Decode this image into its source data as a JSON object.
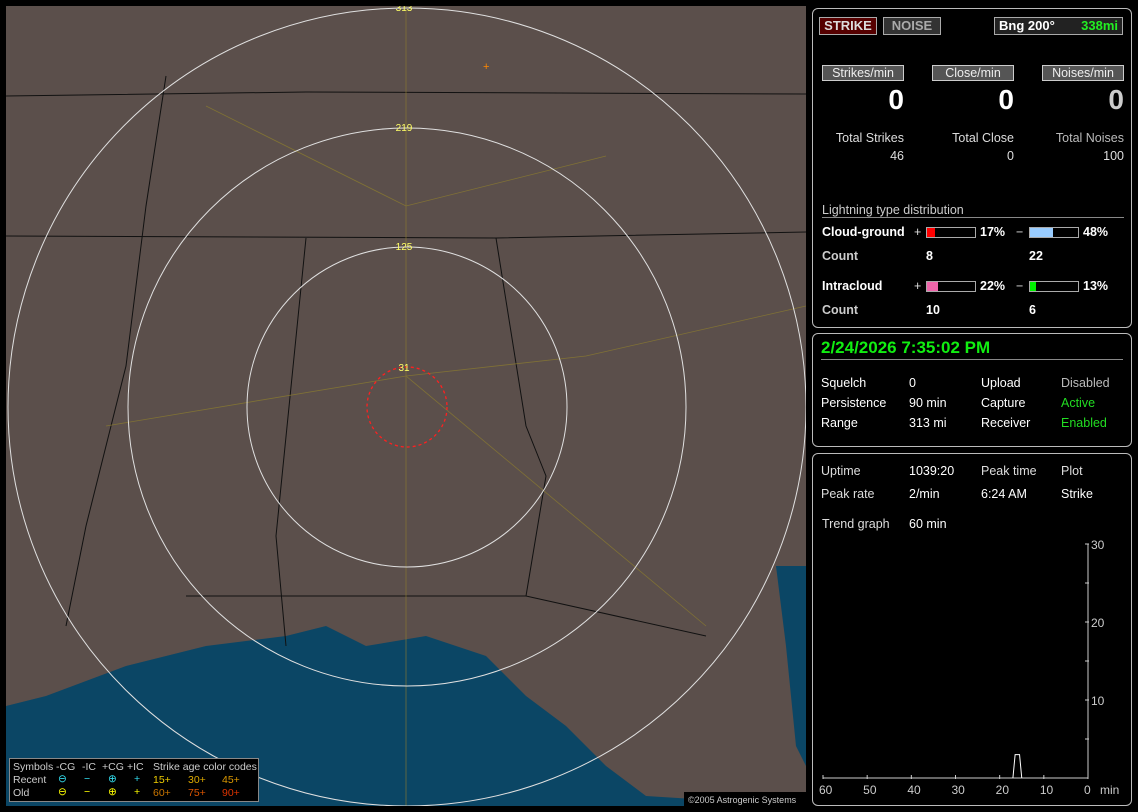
{
  "map": {
    "range_rings": [
      "313",
      "219",
      "125",
      "31"
    ],
    "copyright": "©2005 Astrogenic Systems",
    "legend": {
      "title": "Symbols",
      "cols": [
        "-CG",
        "-IC",
        "+CG",
        "+IC"
      ],
      "age_title": "Strike age color codes",
      "recent_label": "Recent",
      "old_label": "Old",
      "recent_ages": [
        "15+",
        "30+",
        "45+"
      ],
      "old_ages": [
        "60+",
        "75+",
        "90+"
      ]
    },
    "colors": {
      "land": "#5b4f4b",
      "water": "#0b4665",
      "rings": "#e0e0e0",
      "close_ring": "#ff2020",
      "roads": "#8a7a30"
    }
  },
  "top": {
    "strike_btn": "STRIKE",
    "noise_btn": "NOISE",
    "bearing": "Bng 200°",
    "distance": "338mi",
    "rates": [
      {
        "label": "Strikes/min",
        "value": "0"
      },
      {
        "label": "Close/min",
        "value": "0"
      },
      {
        "label": "Noises/min",
        "value": "0"
      }
    ],
    "totals": [
      {
        "label": "Total Strikes",
        "value": "46"
      },
      {
        "label": "Total Close",
        "value": "0"
      },
      {
        "label": "Total Noises",
        "value": "100"
      }
    ],
    "dist_title": "Lightning type distribution",
    "cg": {
      "label": "Cloud-ground",
      "plus_pct": "17%",
      "minus_pct": "48%",
      "plus_count": "8",
      "minus_count": "22",
      "plus_fill": 17,
      "minus_fill": 48,
      "plus_color": "#ff0000",
      "minus_color": "#99ccff"
    },
    "ic": {
      "label": "Intracloud",
      "plus_pct": "22%",
      "minus_pct": "13%",
      "plus_count": "10",
      "minus_count": "6",
      "plus_fill": 22,
      "minus_fill": 13,
      "plus_color": "#ee66aa",
      "minus_color": "#00ee00"
    },
    "count_label": "Count",
    "plus": "+",
    "minus": "−"
  },
  "status": {
    "datetime": "2/24/2026 7:35:02 PM",
    "rows": [
      [
        "Squelch",
        "0",
        "Upload",
        "Disabled"
      ],
      [
        "Persistence",
        "90 min",
        "Capture",
        "Active"
      ],
      [
        "Range",
        "313 mi",
        "Receiver",
        "Enabled"
      ]
    ]
  },
  "trend": {
    "uptime_label": "Uptime",
    "uptime": "1039:20",
    "peak_time_label": "Peak time",
    "plot_label": "Plot",
    "peak_rate_label": "Peak rate",
    "peak_rate": "2/min",
    "peak_time": "6:24 AM",
    "plot": "Strike",
    "trend_label": "Trend graph",
    "trend_value": "60 min",
    "chart_data": {
      "type": "line",
      "x_ticks": [
        "60",
        "50",
        "40",
        "30",
        "20",
        "10",
        "0"
      ],
      "x_unit": "min",
      "y_ticks": [
        "30",
        "20",
        "10"
      ],
      "ylim": [
        0,
        30
      ],
      "xlim": [
        60,
        0
      ],
      "points": [
        [
          17,
          0
        ],
        [
          16.5,
          1
        ],
        [
          15.5,
          1
        ],
        [
          15,
          0
        ]
      ]
    }
  }
}
